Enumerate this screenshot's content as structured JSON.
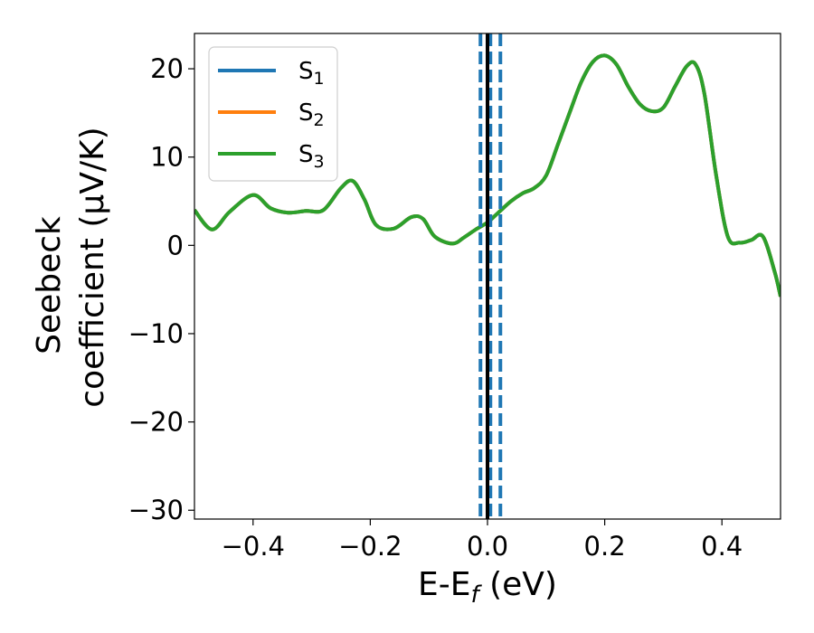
{
  "chart_data": {
    "type": "line",
    "xlabel": "E-E_f (eV)",
    "xlabel_parts": {
      "main": "E-E",
      "sub": "f",
      "rest": " (eV)"
    },
    "ylabel_line1": "Seebeck",
    "ylabel_line2": "coefficient  (μV/K)",
    "xlim": [
      -0.5,
      0.5
    ],
    "ylim": [
      -31,
      24
    ],
    "xticks": [
      -0.4,
      -0.2,
      0.0,
      0.2,
      0.4
    ],
    "xtick_labels": [
      "−0.4",
      "−0.2",
      "0.0",
      "0.2",
      "0.4"
    ],
    "yticks": [
      -30,
      -20,
      -10,
      0,
      10,
      20
    ],
    "ytick_labels": [
      "−30",
      "−20",
      "−10",
      "0",
      "10",
      "20"
    ],
    "grid": false,
    "legend_position": "top-left",
    "series": [
      {
        "name": "S",
        "sub": "1",
        "color": "#1f77b4",
        "x": [
          -0.5,
          -0.47,
          -0.44,
          -0.4,
          -0.37,
          -0.34,
          -0.31,
          -0.28,
          -0.25,
          -0.23,
          -0.21,
          -0.19,
          -0.16,
          -0.13,
          -0.11,
          -0.09,
          -0.06,
          -0.04,
          -0.02,
          0.0,
          0.02,
          0.04,
          0.06,
          0.08,
          0.1,
          0.12,
          0.14,
          0.16,
          0.18,
          0.2,
          0.22,
          0.24,
          0.26,
          0.28,
          0.3,
          0.32,
          0.34,
          0.355,
          0.37,
          0.39,
          0.41,
          0.43,
          0.45,
          0.47,
          0.49,
          0.5
        ],
        "y": [
          4.0,
          1.8,
          3.8,
          5.7,
          4.2,
          3.7,
          3.9,
          4.0,
          6.5,
          7.3,
          5.2,
          2.3,
          1.9,
          3.2,
          3.0,
          1.0,
          0.2,
          0.9,
          1.8,
          2.6,
          3.8,
          5.0,
          5.9,
          6.5,
          7.9,
          11.4,
          15.0,
          18.5,
          20.8,
          21.5,
          20.5,
          18.0,
          16.0,
          15.2,
          15.6,
          18.0,
          20.3,
          20.5,
          17.2,
          8.0,
          1.0,
          0.3,
          0.6,
          1.0,
          -3.0,
          -5.8
        ]
      },
      {
        "name": "S",
        "sub": "2",
        "color": "#ff7f0e",
        "x": [
          -0.5,
          -0.47,
          -0.44,
          -0.4,
          -0.37,
          -0.34,
          -0.31,
          -0.28,
          -0.25,
          -0.23,
          -0.21,
          -0.19,
          -0.16,
          -0.13,
          -0.11,
          -0.09,
          -0.06,
          -0.04,
          -0.02,
          0.0,
          0.02,
          0.04,
          0.06,
          0.08,
          0.1,
          0.12,
          0.14,
          0.16,
          0.18,
          0.2,
          0.22,
          0.24,
          0.26,
          0.28,
          0.3,
          0.32,
          0.34,
          0.355,
          0.37,
          0.39,
          0.41,
          0.43,
          0.45,
          0.47,
          0.49,
          0.5
        ],
        "y": [
          4.0,
          1.8,
          3.8,
          5.7,
          4.2,
          3.7,
          3.9,
          4.0,
          6.5,
          7.3,
          5.2,
          2.3,
          1.9,
          3.2,
          3.0,
          1.0,
          0.2,
          0.9,
          1.8,
          2.6,
          3.8,
          5.0,
          5.9,
          6.5,
          7.9,
          11.4,
          15.0,
          18.5,
          20.8,
          21.5,
          20.5,
          18.0,
          16.0,
          15.2,
          15.6,
          18.0,
          20.3,
          20.5,
          17.2,
          8.0,
          1.0,
          0.3,
          0.6,
          1.0,
          -3.0,
          -5.8
        ]
      },
      {
        "name": "S",
        "sub": "3",
        "color": "#2ca02c",
        "x": [
          -0.5,
          -0.47,
          -0.44,
          -0.4,
          -0.37,
          -0.34,
          -0.31,
          -0.28,
          -0.25,
          -0.23,
          -0.21,
          -0.19,
          -0.16,
          -0.13,
          -0.11,
          -0.09,
          -0.06,
          -0.04,
          -0.02,
          0.0,
          0.02,
          0.04,
          0.06,
          0.08,
          0.1,
          0.12,
          0.14,
          0.16,
          0.18,
          0.2,
          0.22,
          0.24,
          0.26,
          0.28,
          0.3,
          0.32,
          0.34,
          0.355,
          0.37,
          0.39,
          0.41,
          0.43,
          0.45,
          0.47,
          0.49,
          0.5
        ],
        "y": [
          4.0,
          1.8,
          3.8,
          5.7,
          4.2,
          3.7,
          3.9,
          4.0,
          6.5,
          7.3,
          5.2,
          2.3,
          1.9,
          3.2,
          3.0,
          1.0,
          0.2,
          0.9,
          1.8,
          2.6,
          3.8,
          5.0,
          5.9,
          6.5,
          7.9,
          11.4,
          15.0,
          18.5,
          20.8,
          21.5,
          20.5,
          18.0,
          16.0,
          15.2,
          15.6,
          18.0,
          20.3,
          20.5,
          17.2,
          8.0,
          1.0,
          0.3,
          0.6,
          1.0,
          -3.0,
          -5.8
        ]
      }
    ],
    "vertical_lines": [
      {
        "x": 0.0,
        "color": "#000000",
        "style": "solid"
      },
      {
        "x": -0.012,
        "color": "#1f77b4",
        "style": "dashed"
      },
      {
        "x": 0.005,
        "color": "#1f77b4",
        "style": "dashed"
      },
      {
        "x": 0.022,
        "color": "#1f77b4",
        "style": "dashed"
      }
    ]
  }
}
